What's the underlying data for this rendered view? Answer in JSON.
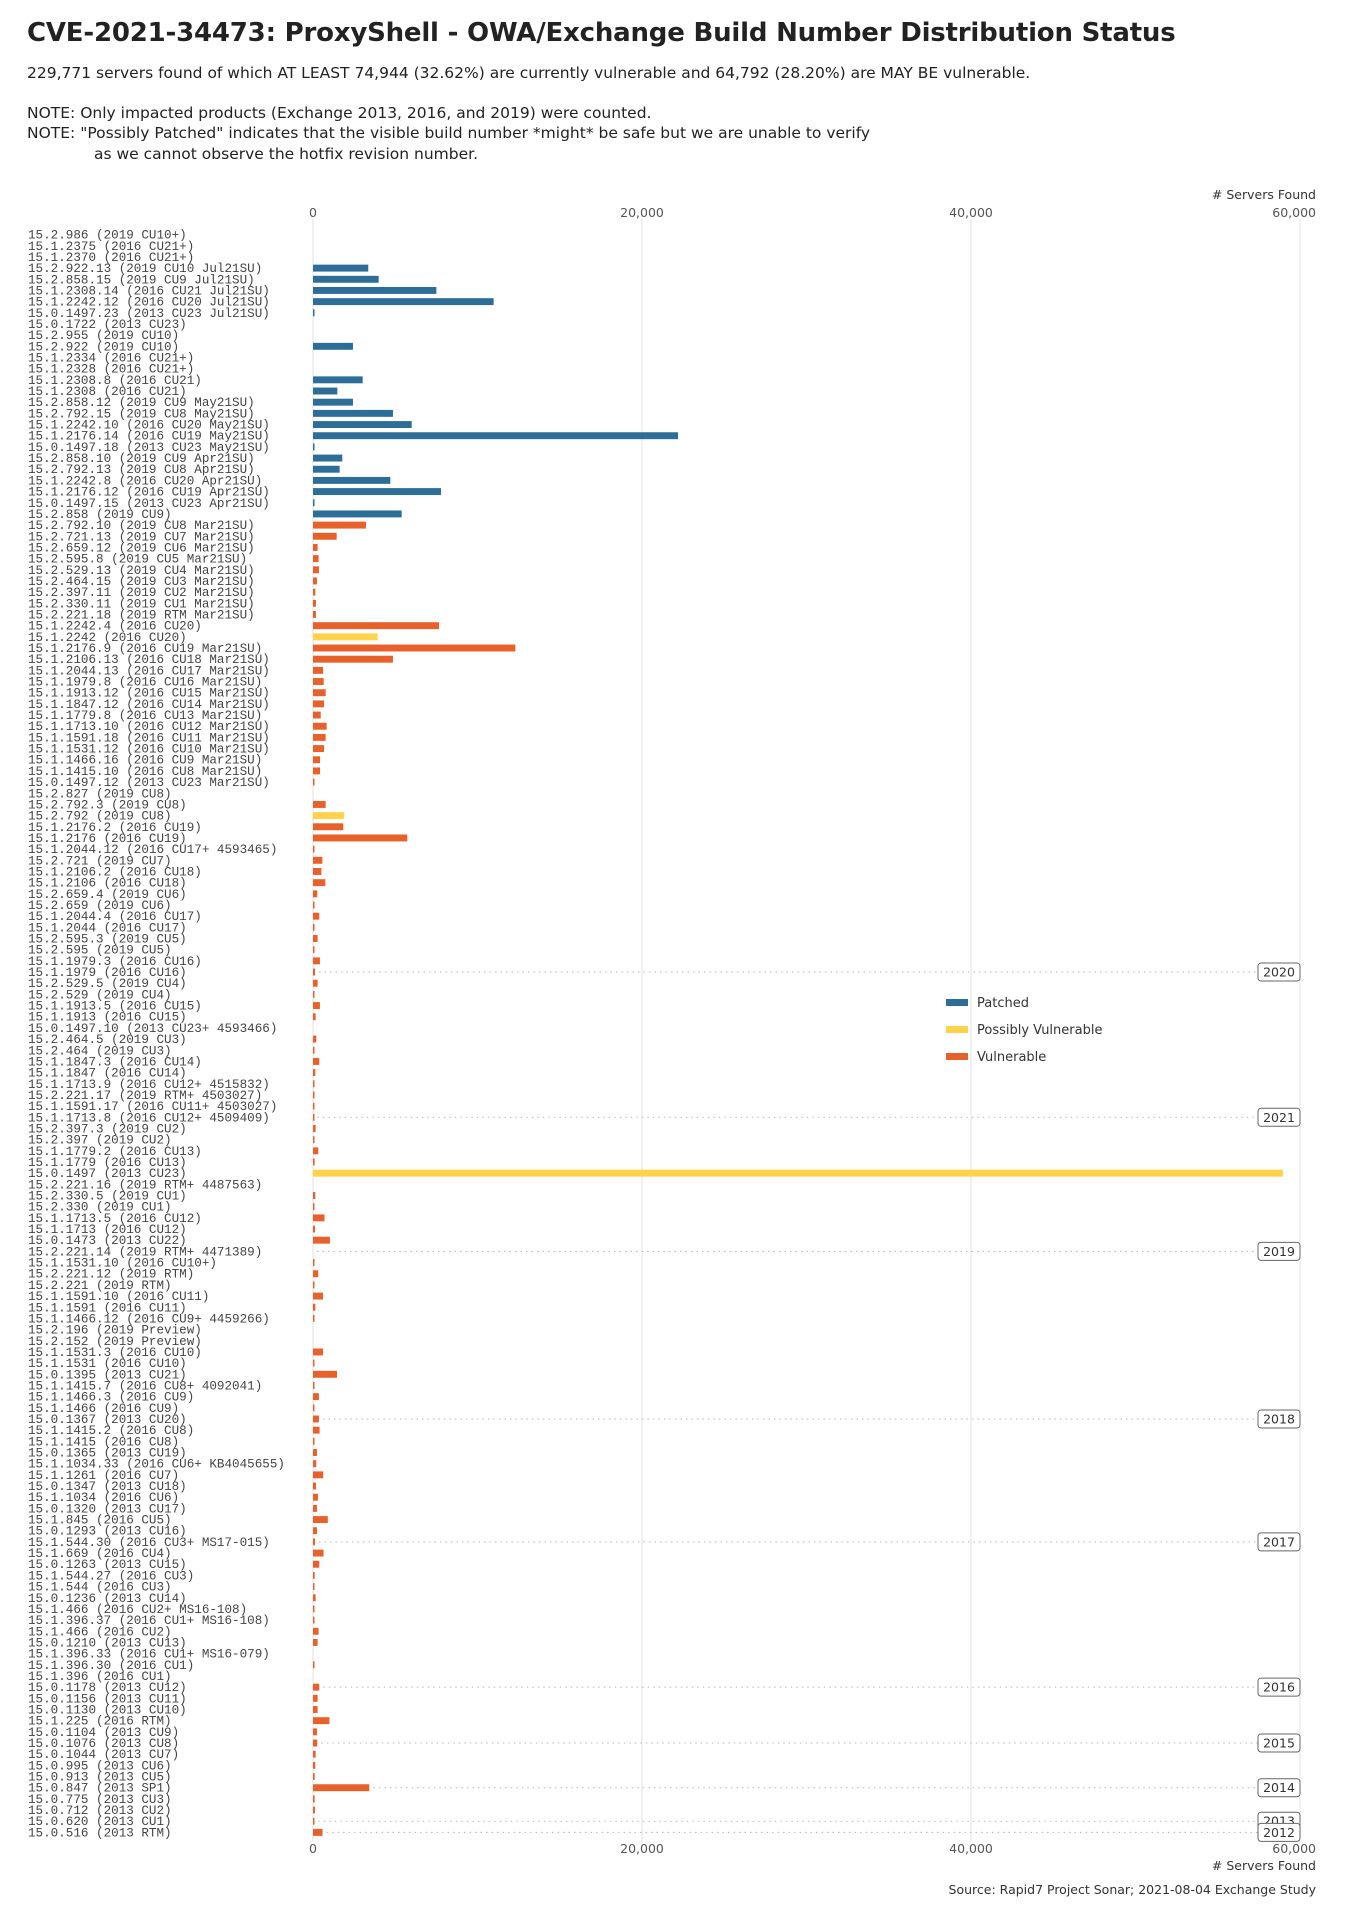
{
  "header": {
    "title": "CVE-2021-34473: ProxyShell - OWA/Exchange Build Number Distribution Status",
    "subtitle": "229,771 servers found of which AT LEAST 74,944 (32.62%) are currently vulnerable and 64,792 (28.20%) are MAY BE vulnerable.",
    "note1": "NOTE: Only impacted products (Exchange 2013, 2016, and 2019) were counted.",
    "note2": "NOTE: \"Possibly Patched\" indicates that the visible build number *might* be safe but we are unable to verify",
    "note3": "as we cannot observe the hotfix revision number."
  },
  "footer": {
    "source": "Source: Rapid7 Project Sonar; 2021-08-04 Exchange Study"
  },
  "chart_data": {
    "type": "bar",
    "orientation": "horizontal",
    "title": "CVE-2021-34473: ProxyShell - OWA/Exchange Build Number Distribution Status",
    "xlabel": "# Servers Found",
    "ylabel": "",
    "xlim": [
      0,
      60000
    ],
    "x_ticks": [
      0,
      20000,
      40000,
      60000
    ],
    "x_tick_labels": [
      "0",
      "20,000",
      "40,000",
      "60,000"
    ],
    "grid": "vertical",
    "legend_position": "right-middle",
    "legend": [
      {
        "key": "patched",
        "label": "Patched",
        "color": "#2d6e99"
      },
      {
        "key": "possibly",
        "label": "Possibly Vulnerable",
        "color": "#ffd24a"
      },
      {
        "key": "vulnerable",
        "label": "Vulnerable",
        "color": "#e8602a"
      }
    ],
    "bars": [
      {
        "label": "15.2.986 (2019 CU10+)",
        "value": 0,
        "status": "patched"
      },
      {
        "label": "15.1.2375 (2016 CU21+)",
        "value": 0,
        "status": "patched"
      },
      {
        "label": "15.1.2370 (2016 CU21+)",
        "value": 0,
        "status": "patched"
      },
      {
        "label": "15.2.922.13 (2019 CU10 Jul21SU)",
        "value": 3360,
        "status": "patched"
      },
      {
        "label": "15.2.858.15 (2019 CU9 Jul21SU)",
        "value": 3990,
        "status": "patched"
      },
      {
        "label": "15.1.2308.14 (2016 CU21 Jul21SU)",
        "value": 7500,
        "status": "patched"
      },
      {
        "label": "15.1.2242.12 (2016 CU20 Jul21SU)",
        "value": 10980,
        "status": "patched"
      },
      {
        "label": "15.0.1497.23 (2013 CU23 Jul21SU)",
        "value": 80,
        "status": "patched"
      },
      {
        "label": "15.0.1722 (2013 CU23)",
        "value": 0,
        "status": "patched"
      },
      {
        "label": "15.2.955 (2019 CU10)",
        "value": 0,
        "status": "patched"
      },
      {
        "label": "15.2.922 (2019 CU10)",
        "value": 2430,
        "status": "patched"
      },
      {
        "label": "15.1.2334 (2016 CU21+)",
        "value": 0,
        "status": "patched"
      },
      {
        "label": "15.1.2328 (2016 CU21+)",
        "value": 0,
        "status": "patched"
      },
      {
        "label": "15.1.2308.8 (2016 CU21)",
        "value": 3020,
        "status": "patched"
      },
      {
        "label": "15.1.2308 (2016 CU21)",
        "value": 1480,
        "status": "patched"
      },
      {
        "label": "15.2.858.12 (2019 CU9 May21SU)",
        "value": 2430,
        "status": "patched"
      },
      {
        "label": "15.2.792.15 (2019 CU8 May21SU)",
        "value": 4860,
        "status": "patched"
      },
      {
        "label": "15.1.2242.10 (2016 CU20 May21SU)",
        "value": 6000,
        "status": "patched"
      },
      {
        "label": "15.1.2176.14 (2016 CU19 May21SU)",
        "value": 22190,
        "status": "patched"
      },
      {
        "label": "15.0.1497.18 (2013 CU23 May21SU)",
        "value": 60,
        "status": "patched"
      },
      {
        "label": "15.2.858.10 (2019 CU9 Apr21SU)",
        "value": 1780,
        "status": "patched"
      },
      {
        "label": "15.2.792.13 (2019 CU8 Apr21SU)",
        "value": 1620,
        "status": "patched"
      },
      {
        "label": "15.1.2242.8 (2016 CU20 Apr21SU)",
        "value": 4700,
        "status": "patched"
      },
      {
        "label": "15.1.2176.12 (2016 CU19 Apr21SU)",
        "value": 7780,
        "status": "patched"
      },
      {
        "label": "15.0.1497.15 (2013 CU23 Apr21SU)",
        "value": 80,
        "status": "patched"
      },
      {
        "label": "15.2.858 (2019 CU9)",
        "value": 5390,
        "status": "patched"
      },
      {
        "label": "15.2.792.10 (2019 CU8 Mar21SU)",
        "value": 3220,
        "status": "vulnerable"
      },
      {
        "label": "15.2.721.13 (2019 CU7 Mar21SU)",
        "value": 1440,
        "status": "vulnerable"
      },
      {
        "label": "15.2.659.12 (2019 CU6 Mar21SU)",
        "value": 280,
        "status": "vulnerable"
      },
      {
        "label": "15.2.595.8 (2019 CU5 Mar21SU)",
        "value": 340,
        "status": "vulnerable"
      },
      {
        "label": "15.2.529.13 (2019 CU4 Mar21SU)",
        "value": 360,
        "status": "vulnerable"
      },
      {
        "label": "15.2.464.15 (2019 CU3 Mar21SU)",
        "value": 240,
        "status": "vulnerable"
      },
      {
        "label": "15.2.397.11 (2019 CU2 Mar21SU)",
        "value": 140,
        "status": "vulnerable"
      },
      {
        "label": "15.2.330.11 (2019 CU1 Mar21SU)",
        "value": 180,
        "status": "vulnerable"
      },
      {
        "label": "15.2.221.18 (2019 RTM Mar21SU)",
        "value": 180,
        "status": "vulnerable"
      },
      {
        "label": "15.1.2242.4 (2016 CU20)",
        "value": 7660,
        "status": "vulnerable"
      },
      {
        "label": "15.1.2242 (2016 CU20)",
        "value": 3930,
        "status": "possibly"
      },
      {
        "label": "15.1.2176.9 (2016 CU19 Mar21SU)",
        "value": 12300,
        "status": "vulnerable"
      },
      {
        "label": "15.1.2106.13 (2016 CU18 Mar21SU)",
        "value": 4860,
        "status": "vulnerable"
      },
      {
        "label": "15.1.2044.13 (2016 CU17 Mar21SU)",
        "value": 610,
        "status": "vulnerable"
      },
      {
        "label": "15.1.1979.8 (2016 CU16 Mar21SU)",
        "value": 650,
        "status": "vulnerable"
      },
      {
        "label": "15.1.1913.12 (2016 CU15 Mar21SU)",
        "value": 770,
        "status": "vulnerable"
      },
      {
        "label": "15.1.1847.12 (2016 CU14 Mar21SU)",
        "value": 670,
        "status": "vulnerable"
      },
      {
        "label": "15.1.1779.8 (2016 CU13 Mar21SU)",
        "value": 470,
        "status": "vulnerable"
      },
      {
        "label": "15.1.1713.10 (2016 CU12 Mar21SU)",
        "value": 830,
        "status": "vulnerable"
      },
      {
        "label": "15.1.1591.18 (2016 CU11 Mar21SU)",
        "value": 770,
        "status": "vulnerable"
      },
      {
        "label": "15.1.1531.12 (2016 CU10 Mar21SU)",
        "value": 670,
        "status": "vulnerable"
      },
      {
        "label": "15.1.1466.16 (2016 CU9 Mar21SU)",
        "value": 430,
        "status": "vulnerable"
      },
      {
        "label": "15.1.1415.10 (2016 CU8 Mar21SU)",
        "value": 430,
        "status": "vulnerable"
      },
      {
        "label": "15.0.1497.12 (2013 CU23 Mar21SU)",
        "value": 60,
        "status": "vulnerable"
      },
      {
        "label": "15.2.827 (2019 CU8)",
        "value": 0,
        "status": "vulnerable"
      },
      {
        "label": "15.2.792.3 (2019 CU8)",
        "value": 770,
        "status": "vulnerable"
      },
      {
        "label": "15.2.792 (2019 CU8)",
        "value": 1900,
        "status": "possibly"
      },
      {
        "label": "15.1.2176.2 (2016 CU19)",
        "value": 1840,
        "status": "vulnerable"
      },
      {
        "label": "15.1.2176 (2016 CU19)",
        "value": 5730,
        "status": "vulnerable"
      },
      {
        "label": "15.1.2044.12 (2016 CU17+ 4593465)",
        "value": 20,
        "status": "vulnerable"
      },
      {
        "label": "15.2.721 (2019 CU7)",
        "value": 570,
        "status": "vulnerable"
      },
      {
        "label": "15.1.2106.2 (2016 CU18)",
        "value": 510,
        "status": "vulnerable"
      },
      {
        "label": "15.1.2106 (2016 CU18)",
        "value": 750,
        "status": "vulnerable"
      },
      {
        "label": "15.2.659.4 (2019 CU6)",
        "value": 260,
        "status": "vulnerable"
      },
      {
        "label": "15.2.659 (2019 CU6)",
        "value": 60,
        "status": "vulnerable"
      },
      {
        "label": "15.1.2044.4 (2016 CU17)",
        "value": 380,
        "status": "vulnerable"
      },
      {
        "label": "15.1.2044 (2016 CU17)",
        "value": 80,
        "status": "vulnerable"
      },
      {
        "label": "15.2.595.3 (2019 CU5)",
        "value": 280,
        "status": "vulnerable"
      },
      {
        "label": "15.2.595 (2019 CU5)",
        "value": 40,
        "status": "vulnerable"
      },
      {
        "label": "15.1.1979.3 (2016 CU16)",
        "value": 420,
        "status": "vulnerable"
      },
      {
        "label": "15.1.1979 (2016 CU16)",
        "value": 120,
        "status": "vulnerable"
      },
      {
        "label": "15.2.529.5 (2019 CU4)",
        "value": 280,
        "status": "vulnerable"
      },
      {
        "label": "15.2.529 (2019 CU4)",
        "value": 60,
        "status": "vulnerable"
      },
      {
        "label": "15.1.1913.5 (2016 CU15)",
        "value": 420,
        "status": "vulnerable"
      },
      {
        "label": "15.1.1913 (2016 CU15)",
        "value": 160,
        "status": "vulnerable"
      },
      {
        "label": "15.0.1497.10 (2013 CU23+ 4593466)",
        "value": 0,
        "status": "vulnerable"
      },
      {
        "label": "15.2.464.5 (2019 CU3)",
        "value": 200,
        "status": "vulnerable"
      },
      {
        "label": "15.2.464 (2019 CU3)",
        "value": 60,
        "status": "vulnerable"
      },
      {
        "label": "15.1.1847.3 (2016 CU14)",
        "value": 380,
        "status": "vulnerable"
      },
      {
        "label": "15.1.1847 (2016 CU14)",
        "value": 140,
        "status": "vulnerable"
      },
      {
        "label": "15.1.1713.9 (2016 CU12+ 4515832)",
        "value": 60,
        "status": "vulnerable"
      },
      {
        "label": "15.2.221.17 (2019 RTM+ 4503027)",
        "value": 20,
        "status": "vulnerable"
      },
      {
        "label": "15.1.1591.17 (2016 CU11+ 4503027)",
        "value": 60,
        "status": "vulnerable"
      },
      {
        "label": "15.1.1713.8 (2016 CU12+ 4509409)",
        "value": 20,
        "status": "vulnerable"
      },
      {
        "label": "15.2.397.3 (2019 CU2)",
        "value": 160,
        "status": "vulnerable"
      },
      {
        "label": "15.2.397 (2019 CU2)",
        "value": 40,
        "status": "vulnerable"
      },
      {
        "label": "15.1.1779.2 (2016 CU13)",
        "value": 320,
        "status": "vulnerable"
      },
      {
        "label": "15.1.1779 (2016 CU13)",
        "value": 100,
        "status": "vulnerable"
      },
      {
        "label": "15.0.1497 (2013 CU23)",
        "value": 58960,
        "status": "possibly"
      },
      {
        "label": "15.2.221.16 (2019 RTM+ 4487563)",
        "value": 0,
        "status": "vulnerable"
      },
      {
        "label": "15.2.330.5 (2019 CU1)",
        "value": 140,
        "status": "vulnerable"
      },
      {
        "label": "15.2.330 (2019 CU1)",
        "value": 40,
        "status": "vulnerable"
      },
      {
        "label": "15.1.1713.5 (2016 CU12)",
        "value": 700,
        "status": "vulnerable"
      },
      {
        "label": "15.1.1713 (2016 CU12)",
        "value": 120,
        "status": "vulnerable"
      },
      {
        "label": "15.0.1473 (2013 CU22)",
        "value": 1030,
        "status": "vulnerable"
      },
      {
        "label": "15.2.221.14 (2019 RTM+ 4471389)",
        "value": 0,
        "status": "vulnerable"
      },
      {
        "label": "15.1.1531.10 (2016 CU10+)",
        "value": 60,
        "status": "vulnerable"
      },
      {
        "label": "15.2.221.12 (2019 RTM)",
        "value": 320,
        "status": "vulnerable"
      },
      {
        "label": "15.2.221 (2019 RTM)",
        "value": 60,
        "status": "vulnerable"
      },
      {
        "label": "15.1.1591.10 (2016 CU11)",
        "value": 610,
        "status": "vulnerable"
      },
      {
        "label": "15.1.1591 (2016 CU11)",
        "value": 140,
        "status": "vulnerable"
      },
      {
        "label": "15.1.1466.12 (2016 CU9+ 4459266)",
        "value": 40,
        "status": "vulnerable"
      },
      {
        "label": "15.2.196 (2019 Preview)",
        "value": 0,
        "status": "vulnerable"
      },
      {
        "label": "15.2.152 (2019 Preview)",
        "value": 0,
        "status": "vulnerable"
      },
      {
        "label": "15.1.1531.3 (2016 CU10)",
        "value": 610,
        "status": "vulnerable"
      },
      {
        "label": "15.1.1531 (2016 CU10)",
        "value": 80,
        "status": "vulnerable"
      },
      {
        "label": "15.0.1395 (2013 CU21)",
        "value": 1460,
        "status": "vulnerable"
      },
      {
        "label": "15.1.1415.7 (2016 CU8+ 4092041)",
        "value": 30,
        "status": "vulnerable"
      },
      {
        "label": "15.1.1466.3 (2016 CU9)",
        "value": 360,
        "status": "vulnerable"
      },
      {
        "label": "15.1.1466 (2016 CU9)",
        "value": 60,
        "status": "vulnerable"
      },
      {
        "label": "15.0.1367 (2013 CU20)",
        "value": 360,
        "status": "vulnerable"
      },
      {
        "label": "15.1.1415.2 (2016 CU8)",
        "value": 400,
        "status": "vulnerable"
      },
      {
        "label": "15.1.1415 (2016 CU8)",
        "value": 30,
        "status": "vulnerable"
      },
      {
        "label": "15.0.1365 (2013 CU19)",
        "value": 240,
        "status": "vulnerable"
      },
      {
        "label": "15.1.1034.33 (2016 CU6+ KB4045655)",
        "value": 200,
        "status": "vulnerable"
      },
      {
        "label": "15.1.1261 (2016 CU7)",
        "value": 620,
        "status": "vulnerable"
      },
      {
        "label": "15.0.1347 (2013 CU18)",
        "value": 180,
        "status": "vulnerable"
      },
      {
        "label": "15.1.1034 (2016 CU6)",
        "value": 300,
        "status": "vulnerable"
      },
      {
        "label": "15.0.1320 (2013 CU17)",
        "value": 240,
        "status": "vulnerable"
      },
      {
        "label": "15.1.845 (2016 CU5)",
        "value": 900,
        "status": "vulnerable"
      },
      {
        "label": "15.0.1293 (2013 CU16)",
        "value": 240,
        "status": "vulnerable"
      },
      {
        "label": "15.1.544.30 (2016 CU3+ MS17-015)",
        "value": 120,
        "status": "vulnerable"
      },
      {
        "label": "15.1.669 (2016 CU4)",
        "value": 640,
        "status": "vulnerable"
      },
      {
        "label": "15.0.1263 (2013 CU15)",
        "value": 380,
        "status": "vulnerable"
      },
      {
        "label": "15.1.544.27 (2016 CU3)",
        "value": 100,
        "status": "vulnerable"
      },
      {
        "label": "15.1.544 (2016 CU3)",
        "value": 20,
        "status": "vulnerable"
      },
      {
        "label": "15.0.1236 (2013 CU14)",
        "value": 160,
        "status": "vulnerable"
      },
      {
        "label": "15.1.466 (2016 CU2+ MS16-108)",
        "value": 60,
        "status": "vulnerable"
      },
      {
        "label": "15.1.396.37 (2016 CU1+ MS16-108)",
        "value": 40,
        "status": "vulnerable"
      },
      {
        "label": "15.1.466 (2016 CU2)",
        "value": 340,
        "status": "vulnerable"
      },
      {
        "label": "15.0.1210 (2013 CU13)",
        "value": 280,
        "status": "vulnerable"
      },
      {
        "label": "15.1.396.33 (2016 CU1+ MS16-079)",
        "value": 0,
        "status": "vulnerable"
      },
      {
        "label": "15.1.396.30 (2016 CU1)",
        "value": 60,
        "status": "vulnerable"
      },
      {
        "label": "15.1.396 (2016 CU1)",
        "value": 0,
        "status": "vulnerable"
      },
      {
        "label": "15.0.1178 (2013 CU12)",
        "value": 380,
        "status": "vulnerable"
      },
      {
        "label": "15.0.1156 (2013 CU11)",
        "value": 280,
        "status": "vulnerable"
      },
      {
        "label": "15.0.1130 (2013 CU10)",
        "value": 280,
        "status": "vulnerable"
      },
      {
        "label": "15.1.225 (2016 RTM)",
        "value": 1000,
        "status": "vulnerable"
      },
      {
        "label": "15.0.1104 (2013 CU9)",
        "value": 240,
        "status": "vulnerable"
      },
      {
        "label": "15.0.1076 (2013 CU8)",
        "value": 260,
        "status": "vulnerable"
      },
      {
        "label": "15.0.1044 (2013 CU7)",
        "value": 160,
        "status": "vulnerable"
      },
      {
        "label": "15.0.995 (2013 CU6)",
        "value": 140,
        "status": "vulnerable"
      },
      {
        "label": "15.0.913 (2013 CU5)",
        "value": 100,
        "status": "vulnerable"
      },
      {
        "label": "15.0.847 (2013 SP1)",
        "value": 3420,
        "status": "vulnerable"
      },
      {
        "label": "15.0.775 (2013 CU3)",
        "value": 100,
        "status": "vulnerable"
      },
      {
        "label": "15.0.712 (2013 CU2)",
        "value": 120,
        "status": "vulnerable"
      },
      {
        "label": "15.0.620 (2013 CU1)",
        "value": 80,
        "status": "vulnerable"
      },
      {
        "label": "15.0.516 (2013 RTM)",
        "value": 580,
        "status": "vulnerable"
      }
    ],
    "year_markers": [
      {
        "year": "2020",
        "at_label": "15.1.1979 (2016 CU16)"
      },
      {
        "year": "2021",
        "at_label": "15.1.1713.8 (2016 CU12+ 4509409)"
      },
      {
        "year": "2019",
        "at_label": "15.2.221.14 (2019 RTM+ 4471389)"
      },
      {
        "year": "2018",
        "at_label": "15.0.1367 (2013 CU20)"
      },
      {
        "year": "2017",
        "at_label": "15.1.544.30 (2016 CU3+ MS17-015)"
      },
      {
        "year": "2016",
        "at_label": "15.0.1178 (2013 CU12)"
      },
      {
        "year": "2015",
        "at_label": "15.0.1076 (2013 CU8)"
      },
      {
        "year": "2014",
        "at_label": "15.0.847 (2013 SP1)"
      },
      {
        "year": "2013",
        "at_label": "15.0.620 (2013 CU1)"
      },
      {
        "year": "2012",
        "at_label": "15.0.516 (2013 RTM)"
      }
    ]
  }
}
